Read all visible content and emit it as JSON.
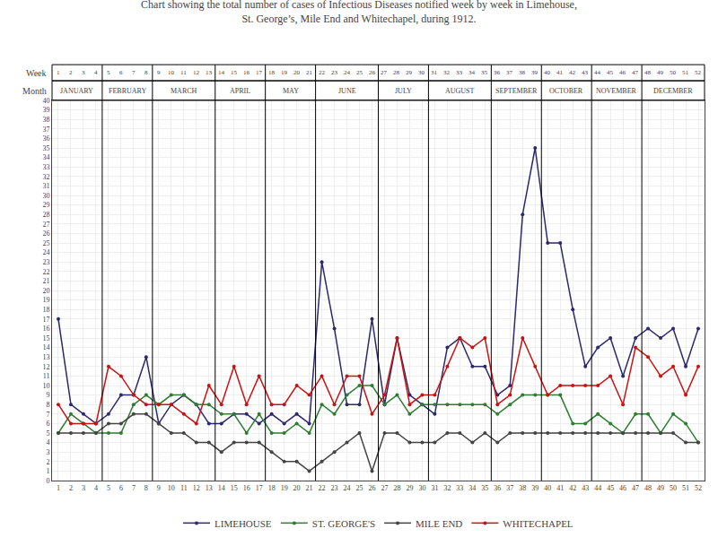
{
  "chart_data": {
    "type": "line",
    "title": "Chart showing the total number of cases of Infectious Diseases notified week by week in Limehouse,",
    "subtitle": "St. George’s, Mile End and Whitechapel, during 1912.",
    "x": [
      1,
      2,
      3,
      4,
      5,
      6,
      7,
      8,
      9,
      10,
      11,
      12,
      13,
      14,
      15,
      16,
      17,
      18,
      19,
      20,
      21,
      22,
      23,
      24,
      25,
      26,
      27,
      28,
      29,
      30,
      31,
      32,
      33,
      34,
      35,
      36,
      37,
      38,
      39,
      40,
      41,
      42,
      43,
      44,
      45,
      46,
      47,
      48,
      49,
      50,
      51,
      52
    ],
    "xlim": [
      0.5,
      52.5
    ],
    "xticks": [
      1,
      2,
      3,
      4,
      5,
      6,
      7,
      8,
      9,
      10,
      11,
      12,
      13,
      14,
      15,
      16,
      17,
      18,
      19,
      20,
      21,
      22,
      23,
      24,
      25,
      26,
      27,
      28,
      29,
      30,
      31,
      32,
      33,
      34,
      35,
      36,
      37,
      38,
      39,
      40,
      41,
      42,
      43,
      44,
      45,
      46,
      47,
      48,
      49,
      50,
      51,
      52
    ],
    "ylim": [
      0,
      40
    ],
    "yticks": [
      0,
      1,
      2,
      3,
      4,
      5,
      6,
      7,
      8,
      9,
      10,
      11,
      12,
      13,
      14,
      15,
      16,
      17,
      18,
      19,
      20,
      21,
      22,
      23,
      24,
      25,
      26,
      27,
      28,
      29,
      30,
      31,
      32,
      33,
      34,
      35,
      36,
      37,
      38,
      39,
      40
    ],
    "grid": true,
    "legend": "bottom",
    "marker": "circle",
    "header": {
      "month_label": "Month",
      "week_label": "Week",
      "months": [
        {
          "label": "JANUARY",
          "weeks": 4
        },
        {
          "label": "FEBRUARY",
          "weeks": 4
        },
        {
          "label": "MARCH",
          "weeks": 5
        },
        {
          "label": "APRIL",
          "weeks": 4
        },
        {
          "label": "MAY",
          "weeks": 4
        },
        {
          "label": "JUNE",
          "weeks": 5
        },
        {
          "label": "JULY",
          "weeks": 4
        },
        {
          "label": "AUGUST",
          "weeks": 5
        },
        {
          "label": "SEPTEMBER",
          "weeks": 4
        },
        {
          "label": "OCTOBER",
          "weeks": 4
        },
        {
          "label": "NOVEMBER",
          "weeks": 4
        },
        {
          "label": "DECEMBER",
          "weeks": 5
        }
      ]
    },
    "series": [
      {
        "name": "LIMEHOUSE",
        "color": "#2d2870",
        "values": [
          17,
          8,
          7,
          6,
          7,
          9,
          9,
          13,
          6,
          8,
          9,
          8,
          6,
          6,
          7,
          7,
          6,
          7,
          6,
          7,
          6,
          23,
          16,
          8,
          8,
          17,
          8,
          15,
          9,
          8,
          7,
          14,
          15,
          12,
          12,
          9,
          10,
          28,
          35,
          25,
          25,
          18,
          12,
          14,
          15,
          11,
          15,
          16,
          15,
          16,
          12,
          16
        ]
      },
      {
        "name": "ST. GEORGE'S",
        "color": "#2e7d32",
        "values": [
          5,
          7,
          6,
          5,
          5,
          5,
          8,
          9,
          8,
          9,
          9,
          8,
          8,
          7,
          7,
          5,
          7,
          5,
          5,
          6,
          5,
          8,
          7,
          9,
          10,
          10,
          8,
          9,
          7,
          8,
          8,
          8,
          8,
          8,
          8,
          7,
          8,
          9,
          9,
          9,
          9,
          6,
          6,
          7,
          6,
          5,
          7,
          7,
          5,
          7,
          6,
          4
        ]
      },
      {
        "name": "MILE END",
        "color": "#444444",
        "values": [
          5,
          5,
          5,
          5,
          6,
          6,
          7,
          7,
          6,
          5,
          5,
          4,
          4,
          3,
          4,
          4,
          4,
          3,
          2,
          2,
          1,
          2,
          3,
          4,
          5,
          1,
          5,
          5,
          4,
          4,
          4,
          5,
          5,
          4,
          5,
          4,
          5,
          5,
          5,
          5,
          5,
          5,
          5,
          5,
          5,
          5,
          5,
          5,
          5,
          5,
          4,
          4
        ]
      },
      {
        "name": "WHITECHAPEL",
        "color": "#cc1111",
        "values": [
          8,
          6,
          6,
          6,
          12,
          11,
          9,
          8,
          8,
          8,
          7,
          6,
          10,
          8,
          12,
          8,
          11,
          8,
          8,
          10,
          9,
          11,
          8,
          11,
          11,
          7,
          9,
          15,
          8,
          9,
          9,
          12,
          15,
          14,
          15,
          8,
          9,
          15,
          12,
          9,
          10,
          10,
          10,
          10,
          11,
          8,
          14,
          13,
          11,
          12,
          9,
          12
        ]
      }
    ]
  }
}
